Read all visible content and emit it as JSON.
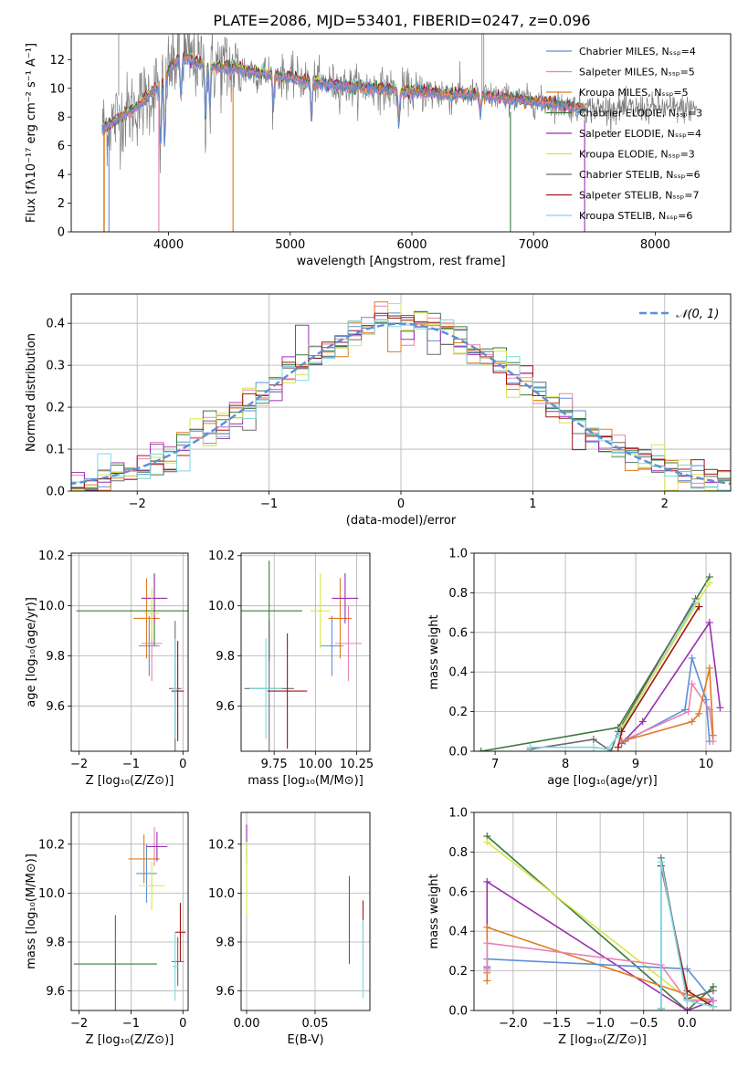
{
  "figure_title": "PLATE=2086, MJD=53401, FIBERID=0247, z=0.096",
  "colors": {
    "data": "#808080",
    "models": [
      "#5b8fd8",
      "#e882b4",
      "#e07b1f",
      "#3a7a3a",
      "#9a2fb0",
      "#d8e64a",
      "#6b6b6b",
      "#a01414",
      "#7dd8e0"
    ],
    "gauss": "#5b8fd8"
  },
  "chart_data": [
    {
      "id": "spectrum",
      "type": "line",
      "title": "PLATE=2086, MJD=53401, FIBERID=0247, z=0.096",
      "xlabel": "wavelength [Angstrom, rest frame]",
      "ylabel": "Flux [fλ10⁻¹⁷ erg cm⁻² s⁻¹ A⁻¹]",
      "xlim": [
        3200,
        8620
      ],
      "ylim": [
        0,
        13.8
      ],
      "xticks": [
        4000,
        5000,
        6000,
        7000,
        8000
      ],
      "yticks": [
        0,
        2,
        4,
        6,
        8,
        10,
        12
      ],
      "grid": false,
      "legend_loc": "top-right",
      "legend": [
        "Chabrier MILES, Nₛₛₚ=4",
        "Salpeter MILES, Nₛₛₚ=5",
        "Kroupa MILES, Nₛₛₚ=5",
        "Chabrier ELODIE, Nₛₛₚ=3",
        "Salpeter ELODIE, Nₛₛₚ=4",
        "Kroupa ELODIE, Nₛₛₚ=3",
        "Chabrier STELIB, Nₛₛₚ=6",
        "Salpeter STELIB, Nₛₛₚ=7",
        "Kroupa STELIB, Nₛₛₚ=6"
      ],
      "continuum": {
        "x": [
          3450,
          3600,
          3750,
          3900,
          4000,
          4100,
          4300,
          4500,
          4700,
          4900,
          5100,
          5400,
          5700,
          6000,
          6300,
          6500,
          6800,
          7100,
          7400
        ],
        "y": [
          7.2,
          8.0,
          8.8,
          10.0,
          11.2,
          12.3,
          11.6,
          11.4,
          11.2,
          10.9,
          10.6,
          10.2,
          10.0,
          9.8,
          9.6,
          9.6,
          9.3,
          9.0,
          8.6
        ]
      }
    },
    {
      "id": "residuals",
      "type": "histogram",
      "xlabel": "(data-model)/error",
      "ylabel": "Normed distribution",
      "xlim": [
        -2.5,
        2.5
      ],
      "ylim": [
        0,
        0.47
      ],
      "xticks": [
        -2,
        -1,
        0,
        1,
        2
      ],
      "yticks": [
        0.0,
        0.1,
        0.2,
        0.3,
        0.4
      ],
      "grid": true,
      "legend_loc": "top-right",
      "legend": [
        "𝒩(0, 1)"
      ],
      "bin_width": 0.1
    },
    {
      "id": "age-vs-z",
      "type": "scatter",
      "xlabel": "Z [log₁₀(Z/Z⊙)]",
      "ylabel": "age  [log₁₀(age/yr)]",
      "xlim": [
        -2.15,
        0.1
      ],
      "ylim": [
        9.42,
        10.21
      ],
      "xticks": [
        -2,
        -1,
        0
      ],
      "yticks": [
        9.6,
        9.8,
        10.0,
        10.2
      ],
      "grid": true,
      "points": [
        {
          "c": 0,
          "x": -0.65,
          "y": 9.84,
          "xe": 0.2,
          "ye": 0.12
        },
        {
          "c": 1,
          "x": -0.6,
          "y": 9.85,
          "xe": 0.2,
          "ye": 0.15
        },
        {
          "c": 2,
          "x": -0.7,
          "y": 9.95,
          "xe": 0.25,
          "ye": 0.16
        },
        {
          "c": 3,
          "x": -0.55,
          "y": 9.98,
          "xe": 1.5,
          "ye": 0.14
        },
        {
          "c": 4,
          "x": -0.55,
          "y": 10.03,
          "xe": 0.25,
          "ye": 0.1
        },
        {
          "c": 5,
          "x": -0.6,
          "y": 9.97,
          "xe": 0.15,
          "ye": 0.1
        },
        {
          "c": 6,
          "x": -0.15,
          "y": 9.67,
          "xe": 0.12,
          "ye": 0.27
        },
        {
          "c": 7,
          "x": -0.1,
          "y": 9.66,
          "xe": 0.12,
          "ye": 0.2
        },
        {
          "c": 8,
          "x": -0.15,
          "y": 9.67,
          "xe": 0.05,
          "ye": 0.2
        }
      ]
    },
    {
      "id": "age-vs-mass",
      "type": "scatter",
      "xlabel": "mass [log₁₀(M/M⊙)]",
      "ylabel": "",
      "xlim": [
        9.55,
        10.33
      ],
      "ylim": [
        9.42,
        10.21
      ],
      "xticks": [
        9.75,
        10.0,
        10.25
      ],
      "yticks": [
        9.6,
        9.8,
        10.0,
        10.2
      ],
      "grid": true,
      "points": [
        {
          "c": 0,
          "x": 10.1,
          "y": 9.84,
          "xe": 0.07,
          "ye": 0.12
        },
        {
          "c": 1,
          "x": 10.2,
          "y": 9.85,
          "xe": 0.08,
          "ye": 0.15
        },
        {
          "c": 2,
          "x": 10.15,
          "y": 9.95,
          "xe": 0.07,
          "ye": 0.16
        },
        {
          "c": 3,
          "x": 9.72,
          "y": 9.98,
          "xe": 0.2,
          "ye": 0.2
        },
        {
          "c": 4,
          "x": 10.18,
          "y": 10.03,
          "xe": 0.08,
          "ye": 0.1
        },
        {
          "c": 5,
          "x": 10.03,
          "y": 9.98,
          "xe": 0.06,
          "ye": 0.15
        },
        {
          "c": 6,
          "x": 9.72,
          "y": 9.67,
          "xe": 0.15,
          "ye": 0.27
        },
        {
          "c": 7,
          "x": 9.83,
          "y": 9.66,
          "xe": 0.12,
          "ye": 0.23
        },
        {
          "c": 8,
          "x": 9.7,
          "y": 9.67,
          "xe": 0.1,
          "ye": 0.2
        }
      ]
    },
    {
      "id": "weight-vs-age",
      "type": "line",
      "xlabel": "age  [log₁₀(age/yr)]",
      "ylabel": "mass weight",
      "xlim": [
        6.7,
        10.35
      ],
      "ylim": [
        0,
        1.0
      ],
      "xticks": [
        7,
        8,
        9,
        10
      ],
      "yticks": [
        0.0,
        0.2,
        0.4,
        0.6,
        0.8,
        1.0
      ],
      "grid": true,
      "series": [
        {
          "c": 3,
          "x": [
            6.8,
            8.75,
            10.05
          ],
          "y": [
            0.0,
            0.12,
            0.88
          ]
        },
        {
          "c": 6,
          "x": [
            7.5,
            8.4,
            8.65,
            8.75,
            9.85
          ],
          "y": [
            0.01,
            0.06,
            0.0,
            0.1,
            0.77
          ]
        },
        {
          "c": 8,
          "x": [
            7.5,
            8.4,
            8.6,
            8.75,
            9.85
          ],
          "y": [
            0.02,
            0.02,
            0.01,
            0.08,
            0.75
          ]
        },
        {
          "c": 5,
          "x": [
            8.8,
            10.05
          ],
          "y": [
            0.12,
            0.85
          ]
        },
        {
          "c": 7,
          "x": [
            8.75,
            8.8,
            9.9
          ],
          "y": [
            0.02,
            0.1,
            0.73
          ]
        },
        {
          "c": 4,
          "x": [
            8.8,
            9.1,
            10.05,
            10.2
          ],
          "y": [
            0.04,
            0.15,
            0.65,
            0.22
          ]
        },
        {
          "c": 0,
          "x": [
            8.85,
            9.7,
            9.8,
            10.0,
            10.05
          ],
          "y": [
            0.05,
            0.21,
            0.47,
            0.26,
            0.05
          ]
        },
        {
          "c": 1,
          "x": [
            8.8,
            9.75,
            9.8,
            10.05,
            10.1
          ],
          "y": [
            0.05,
            0.2,
            0.34,
            0.21,
            0.05
          ]
        },
        {
          "c": 2,
          "x": [
            8.8,
            9.8,
            9.9,
            10.05,
            10.1
          ],
          "y": [
            0.05,
            0.15,
            0.19,
            0.42,
            0.08
          ]
        }
      ]
    },
    {
      "id": "mass-vs-z",
      "type": "scatter",
      "xlabel": "Z [log₁₀(Z/Z⊙)]",
      "ylabel": "mass [log₁₀(M/M⊙)]",
      "xlim": [
        -2.15,
        0.1
      ],
      "ylim": [
        9.52,
        10.33
      ],
      "xticks": [
        -2,
        -1,
        0
      ],
      "yticks": [
        9.6,
        9.8,
        10.0,
        10.2
      ],
      "grid": true,
      "points": [
        {
          "c": 0,
          "x": -0.7,
          "y": 10.08,
          "xe": 0.2,
          "ye": 0.12
        },
        {
          "c": 1,
          "x": -0.55,
          "y": 10.19,
          "xe": 0.15,
          "ye": 0.08
        },
        {
          "c": 2,
          "x": -0.75,
          "y": 10.14,
          "xe": 0.3,
          "ye": 0.1
        },
        {
          "c": 3,
          "x": -1.3,
          "y": 9.71,
          "xe": 0.8,
          "ye": 0.2
        },
        {
          "c": 4,
          "x": -0.5,
          "y": 10.19,
          "xe": 0.2,
          "ye": 0.06
        },
        {
          "c": 5,
          "x": -0.6,
          "y": 10.03,
          "xe": 0.25,
          "ye": 0.1
        },
        {
          "c": 6,
          "x": -0.1,
          "y": 9.72,
          "xe": 0.12,
          "ye": 0.1
        },
        {
          "c": 7,
          "x": -0.05,
          "y": 9.84,
          "xe": 0.1,
          "ye": 0.12
        },
        {
          "c": 8,
          "x": -0.15,
          "y": 9.7,
          "xe": 0.05,
          "ye": 0.14
        }
      ]
    },
    {
      "id": "mass-vs-ebv",
      "type": "scatter",
      "xlabel": "E(B-V)",
      "ylabel": "",
      "xlim": [
        -0.004,
        0.09
      ],
      "ylim": [
        9.52,
        10.33
      ],
      "xticks": [
        0.0,
        0.05
      ],
      "yticks": [
        9.6,
        9.8,
        10.0,
        10.2
      ],
      "grid": true,
      "points": [
        {
          "c": 1,
          "x": 0.0,
          "y": 10.22,
          "xe": 0,
          "ye": 0.06
        },
        {
          "c": 4,
          "x": 0.0,
          "y": 10.2,
          "xe": 0,
          "ye": 0.08
        },
        {
          "c": 5,
          "x": 0.0,
          "y": 10.06,
          "xe": 0,
          "ye": 0.15
        },
        {
          "c": 3,
          "x": 0.075,
          "y": 9.89,
          "xe": 0,
          "ye": 0.18
        },
        {
          "c": 7,
          "x": 0.085,
          "y": 9.85,
          "xe": 0,
          "ye": 0.12
        },
        {
          "c": 8,
          "x": 0.085,
          "y": 9.73,
          "xe": 0,
          "ye": 0.16
        }
      ]
    },
    {
      "id": "weight-vs-z",
      "type": "line",
      "xlabel": "Z [log₁₀(Z/Z⊙)]",
      "ylabel": "mass weight",
      "xlim": [
        -2.45,
        0.5
      ],
      "ylim": [
        0,
        1.0
      ],
      "xticks": [
        -2.0,
        -1.5,
        -1.0,
        -0.5,
        0.0
      ],
      "yticks": [
        0.0,
        0.2,
        0.4,
        0.6,
        0.8,
        1.0
      ],
      "grid": true,
      "series": [
        {
          "c": 3,
          "x": [
            -2.3,
            0.0,
            0.3
          ],
          "y": [
            0.88,
            0.0,
            0.12
          ]
        },
        {
          "c": 5,
          "x": [
            -2.3,
            0.0,
            0.3
          ],
          "y": [
            0.85,
            0.06,
            0.05
          ]
        },
        {
          "c": 4,
          "x": [
            -2.3,
            -2.3,
            0.0,
            0.3
          ],
          "y": [
            0.22,
            0.65,
            0.0,
            0.05
          ]
        },
        {
          "c": 2,
          "x": [
            -2.3,
            -2.3,
            -2.3,
            0.0,
            0.3
          ],
          "y": [
            0.15,
            0.19,
            0.42,
            0.08,
            0.05
          ]
        },
        {
          "c": 0,
          "x": [
            -2.3,
            -2.3,
            0.0,
            0.3
          ],
          "y": [
            0.21,
            0.26,
            0.21,
            0.05
          ]
        },
        {
          "c": 1,
          "x": [
            -2.3,
            -2.3,
            -0.3,
            0.0,
            0.3
          ],
          "y": [
            0.2,
            0.34,
            0.23,
            0.05,
            0.05
          ]
        },
        {
          "c": 7,
          "x": [
            -0.3,
            -0.3,
            0.0,
            0.3
          ],
          "y": [
            0.01,
            0.73,
            0.1,
            0.02
          ]
        },
        {
          "c": 6,
          "x": [
            -0.3,
            -0.3,
            0.0,
            0.3
          ],
          "y": [
            0.0,
            0.77,
            0.06,
            0.1
          ]
        },
        {
          "c": 8,
          "x": [
            -0.3,
            -0.3,
            0.0,
            0.3
          ],
          "y": [
            0.01,
            0.75,
            0.05,
            0.02
          ]
        }
      ]
    }
  ]
}
